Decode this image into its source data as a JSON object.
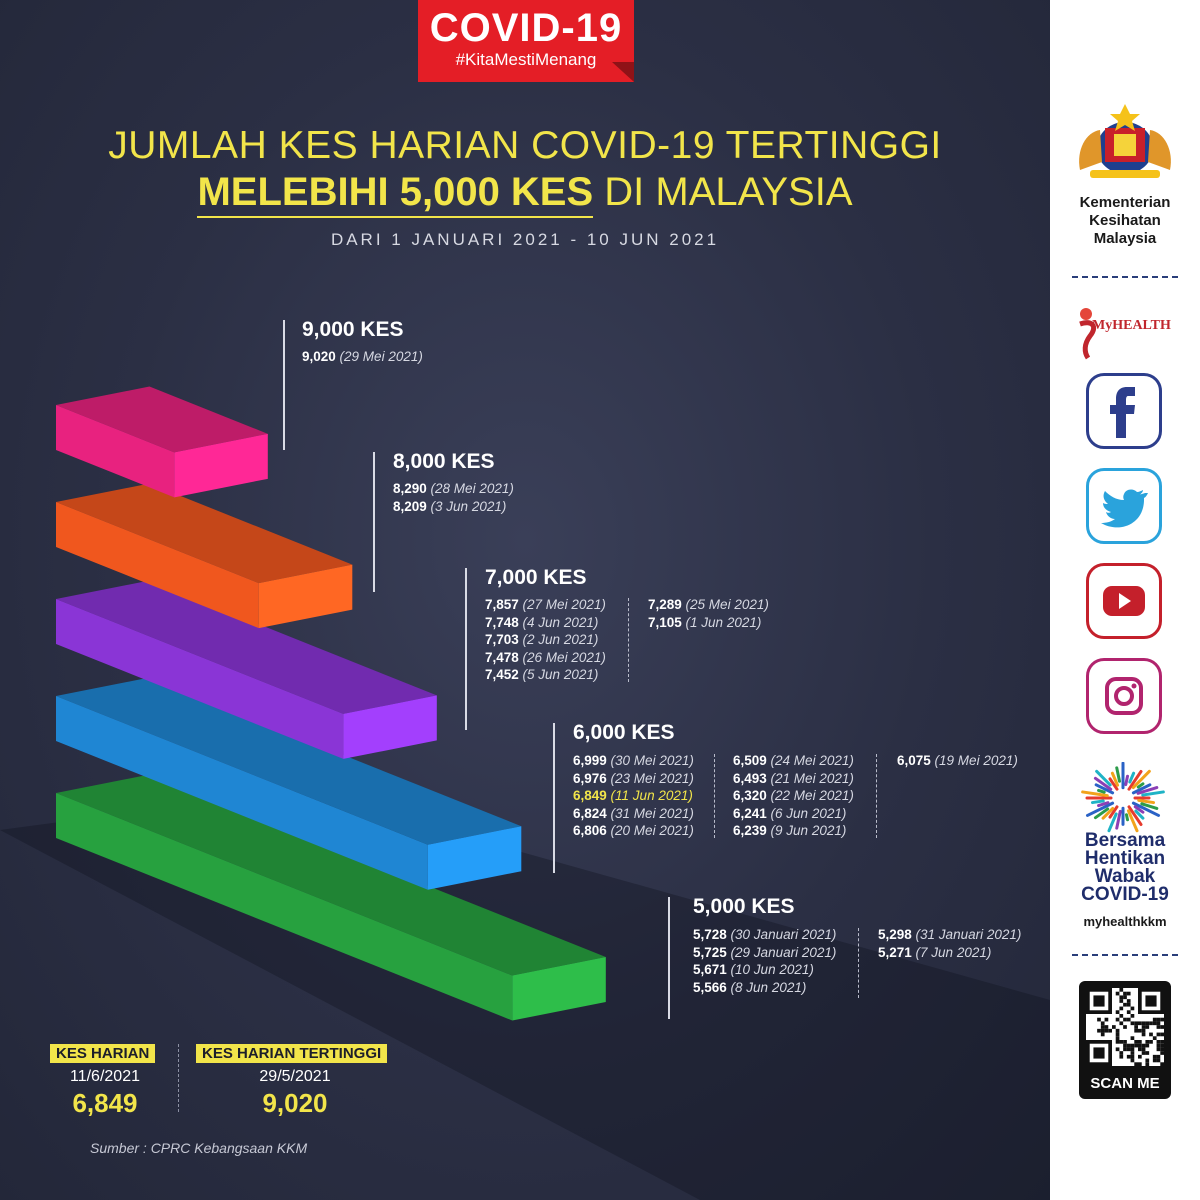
{
  "header": {
    "badge_title": "COVID-19",
    "badge_tag": "#KitaMestiMenang",
    "title_line1": "JUMLAH KES HARIAN COVID-19 TERTINGGI",
    "title_line2_bold": "MELEBIHI 5,000 KES",
    "title_line2_rest": " DI MALAYSIA",
    "subtitle": "DARI 1 JANUARI 2021 - 10 JUN 2021",
    "accent_color": "#f2e54a",
    "badge_color": "#e41e26"
  },
  "chart_data": {
    "type": "bar",
    "title": "JUMLAH KES HARIAN COVID-19 TERTINGGI MELEBIHI 5,000 KES DI MALAYSIA",
    "categories": [
      "9,000 KES",
      "8,000 KES",
      "7,000 KES",
      "6,000 KES",
      "5,000 KES"
    ],
    "thresholds": [
      9000,
      8000,
      7000,
      6000,
      5000
    ],
    "colors": [
      "#e8227f",
      "#f0571e",
      "#8a35d6",
      "#1f86d3",
      "#27a13f"
    ],
    "groups": [
      {
        "label": "9,000 KES",
        "columns": [
          [
            {
              "value": "9,020",
              "date": "(29 Mei 2021)"
            }
          ]
        ]
      },
      {
        "label": "8,000 KES",
        "columns": [
          [
            {
              "value": "8,290",
              "date": "(28 Mei 2021)"
            },
            {
              "value": "8,209",
              "date": "(3 Jun 2021)"
            }
          ]
        ]
      },
      {
        "label": "7,000 KES",
        "columns": [
          [
            {
              "value": "7,857",
              "date": "(27 Mei 2021)"
            },
            {
              "value": "7,748",
              "date": "(4 Jun 2021)"
            },
            {
              "value": "7,703",
              "date": "(2 Jun 2021)"
            },
            {
              "value": "7,478",
              "date": "(26 Mei 2021)"
            },
            {
              "value": "7,452",
              "date": "(5 Jun 2021)"
            }
          ],
          [
            {
              "value": "7,289",
              "date": "(25 Mei 2021)"
            },
            {
              "value": "7,105",
              "date": "(1 Jun 2021)"
            }
          ]
        ]
      },
      {
        "label": "6,000 KES",
        "columns": [
          [
            {
              "value": "6,999",
              "date": "(30 Mei 2021)"
            },
            {
              "value": "6,976",
              "date": "(23 Mei 2021)"
            },
            {
              "value": "6,849",
              "date": "(11 Jun 2021)",
              "highlight": true
            },
            {
              "value": "6,824",
              "date": "(31 Mei 2021)"
            },
            {
              "value": "6,806",
              "date": "(20 Mei 2021)"
            }
          ],
          [
            {
              "value": "6,509",
              "date": "(24 Mei 2021)"
            },
            {
              "value": "6,493",
              "date": "(21 Mei 2021)"
            },
            {
              "value": "6,320",
              "date": "(22 Mei 2021)"
            },
            {
              "value": "6,241",
              "date": "(6 Jun 2021)"
            },
            {
              "value": "6,239",
              "date": "(9 Jun 2021)"
            }
          ],
          [
            {
              "value": "6,075",
              "date": "(19 Mei 2021)"
            }
          ]
        ]
      },
      {
        "label": "5,000 KES",
        "columns": [
          [
            {
              "value": "5,728",
              "date": "(30 Januari 2021)"
            },
            {
              "value": "5,725",
              "date": "(29 Januari 2021)"
            },
            {
              "value": "5,671",
              "date": "(10 Jun 2021)"
            },
            {
              "value": "5,566",
              "date": "(8 Jun 2021)"
            }
          ],
          [
            {
              "value": "5,298",
              "date": "(31 Januari 2021)"
            },
            {
              "value": "5,271",
              "date": "(7 Jun 2021)"
            }
          ]
        ]
      }
    ]
  },
  "stats": {
    "daily_label": "KES HARIAN",
    "daily_date": "11/6/2021",
    "daily_value": "6,849",
    "peak_label": "KES HARIAN TERTINGGI",
    "peak_date": "29/5/2021",
    "peak_value": "9,020"
  },
  "source": "Sumber : CPRC Kebangsaan KKM",
  "sidebar": {
    "ministry_lines": [
      "Kementerian",
      "Kesihatan",
      "Malaysia"
    ],
    "myhealth_label": "MyHEALTH",
    "social_icons": [
      {
        "name": "facebook-icon",
        "color": "#2d3e8c"
      },
      {
        "name": "twitter-icon",
        "color": "#2aa3dc"
      },
      {
        "name": "youtube-icon",
        "color": "#c4202b"
      },
      {
        "name": "instagram-icon",
        "color": "#b1246e"
      }
    ],
    "campaign_lines": [
      "Bersama",
      "Hentikan",
      "Wabak",
      "COVID-19"
    ],
    "handle": "myhealthkkm",
    "qr_label": "SCAN ME"
  }
}
